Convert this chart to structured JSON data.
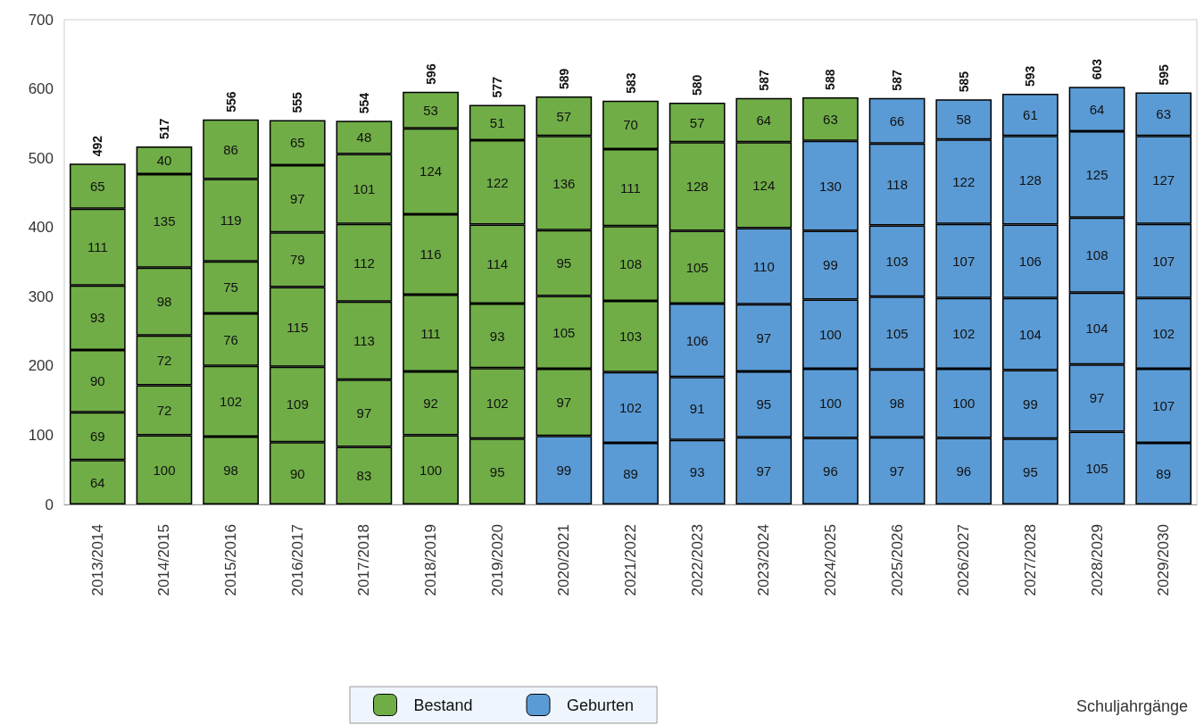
{
  "chart_data": {
    "type": "bar",
    "stacked": true,
    "annotations": [
      "Schuljahrgänge"
    ],
    "categories": [
      "2013/2014",
      "2014/2015",
      "2015/2016",
      "2016/2017",
      "2017/2018",
      "2018/2019",
      "2019/2020",
      "2020/2021",
      "2021/2022",
      "2022/2023",
      "2023/2024",
      "2024/2025",
      "2025/2026",
      "2026/2027",
      "2027/2028",
      "2028/2029",
      "2029/2030"
    ],
    "series": [
      {
        "name": "Bestand",
        "color": "#70ad47",
        "values": [
          64,
          100,
          98,
          90,
          83,
          100,
          95,
          null,
          null,
          null,
          null,
          null,
          null,
          null,
          null,
          null,
          null
        ]
      },
      {
        "name": "Geburten",
        "color": "#5b9bd5",
        "values": [
          null,
          null,
          null,
          null,
          null,
          null,
          null,
          99,
          89,
          93,
          97,
          96,
          97,
          96,
          95,
          105,
          89
        ]
      },
      {
        "color": "#70ad47",
        "values": [
          69,
          72,
          102,
          109,
          97,
          92,
          102,
          97,
          null,
          null,
          null,
          null,
          null,
          null,
          null,
          null,
          null
        ]
      },
      {
        "color": "#5b9bd5",
        "values": [
          null,
          null,
          null,
          null,
          null,
          null,
          null,
          null,
          102,
          91,
          95,
          100,
          98,
          100,
          99,
          97,
          107
        ]
      },
      {
        "color": "#70ad47",
        "values": [
          90,
          72,
          76,
          115,
          113,
          111,
          93,
          105,
          103,
          null,
          null,
          null,
          null,
          null,
          null,
          null,
          null
        ]
      },
      {
        "color": "#5b9bd5",
        "values": [
          null,
          null,
          null,
          null,
          null,
          null,
          null,
          null,
          null,
          106,
          97,
          100,
          105,
          102,
          104,
          104,
          102
        ]
      },
      {
        "color": "#70ad47",
        "values": [
          93,
          98,
          75,
          79,
          112,
          116,
          114,
          95,
          108,
          105,
          null,
          null,
          null,
          null,
          null,
          null,
          null
        ]
      },
      {
        "color": "#5b9bd5",
        "values": [
          null,
          null,
          null,
          null,
          null,
          null,
          null,
          null,
          null,
          null,
          110,
          99,
          103,
          107,
          106,
          108,
          107
        ]
      },
      {
        "color": "#70ad47",
        "values": [
          111,
          135,
          119,
          97,
          101,
          124,
          122,
          136,
          111,
          128,
          124,
          null,
          null,
          null,
          null,
          null,
          null
        ]
      },
      {
        "color": "#5b9bd5",
        "values": [
          null,
          null,
          null,
          null,
          null,
          null,
          null,
          null,
          null,
          null,
          null,
          130,
          118,
          122,
          128,
          125,
          127
        ]
      },
      {
        "color": "#70ad47",
        "values": [
          65,
          40,
          86,
          65,
          48,
          53,
          51,
          57,
          70,
          57,
          64,
          63,
          null,
          null,
          null,
          null,
          null
        ]
      },
      {
        "color": "#5b9bd5",
        "values": [
          null,
          null,
          null,
          null,
          null,
          null,
          null,
          null,
          null,
          null,
          null,
          null,
          66,
          58,
          61,
          64,
          63
        ]
      }
    ],
    "totals": [
      "492",
      "517",
      "556",
      "555",
      "554",
      "596",
      "577",
      "589",
      "583",
      "580",
      "587",
      "588",
      "587",
      "585",
      "593",
      "603",
      "595"
    ],
    "data_labels": true,
    "legend": "bottom",
    "grid": false,
    "ylim": [
      0,
      700
    ],
    "yticks": [
      0,
      100,
      200,
      300,
      400,
      500,
      600,
      700
    ]
  }
}
